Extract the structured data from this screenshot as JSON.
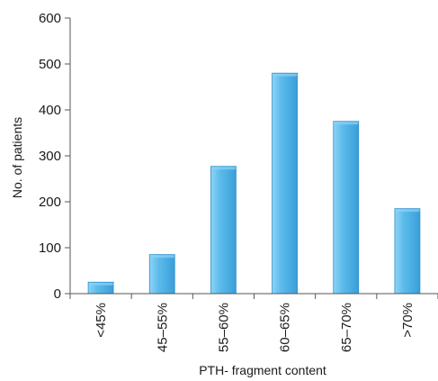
{
  "chart_data": {
    "type": "bar",
    "categories": [
      "<45%",
      "45–55%",
      "55–60%",
      "60–65%",
      "65–70%",
      ">70%"
    ],
    "values": [
      25,
      85,
      277,
      480,
      375,
      185
    ],
    "title": "",
    "xlabel": "PTH- fragment content",
    "ylabel": "No. of patients",
    "ylim": [
      0,
      600
    ],
    "yticks": [
      0,
      100,
      200,
      300,
      400,
      500,
      600
    ],
    "grid": false,
    "colors": {
      "bar_fill": "#4db3e8",
      "bar_light": "#8fd3f5",
      "bar_dark": "#2f8fcb",
      "axis": "#555555"
    }
  }
}
